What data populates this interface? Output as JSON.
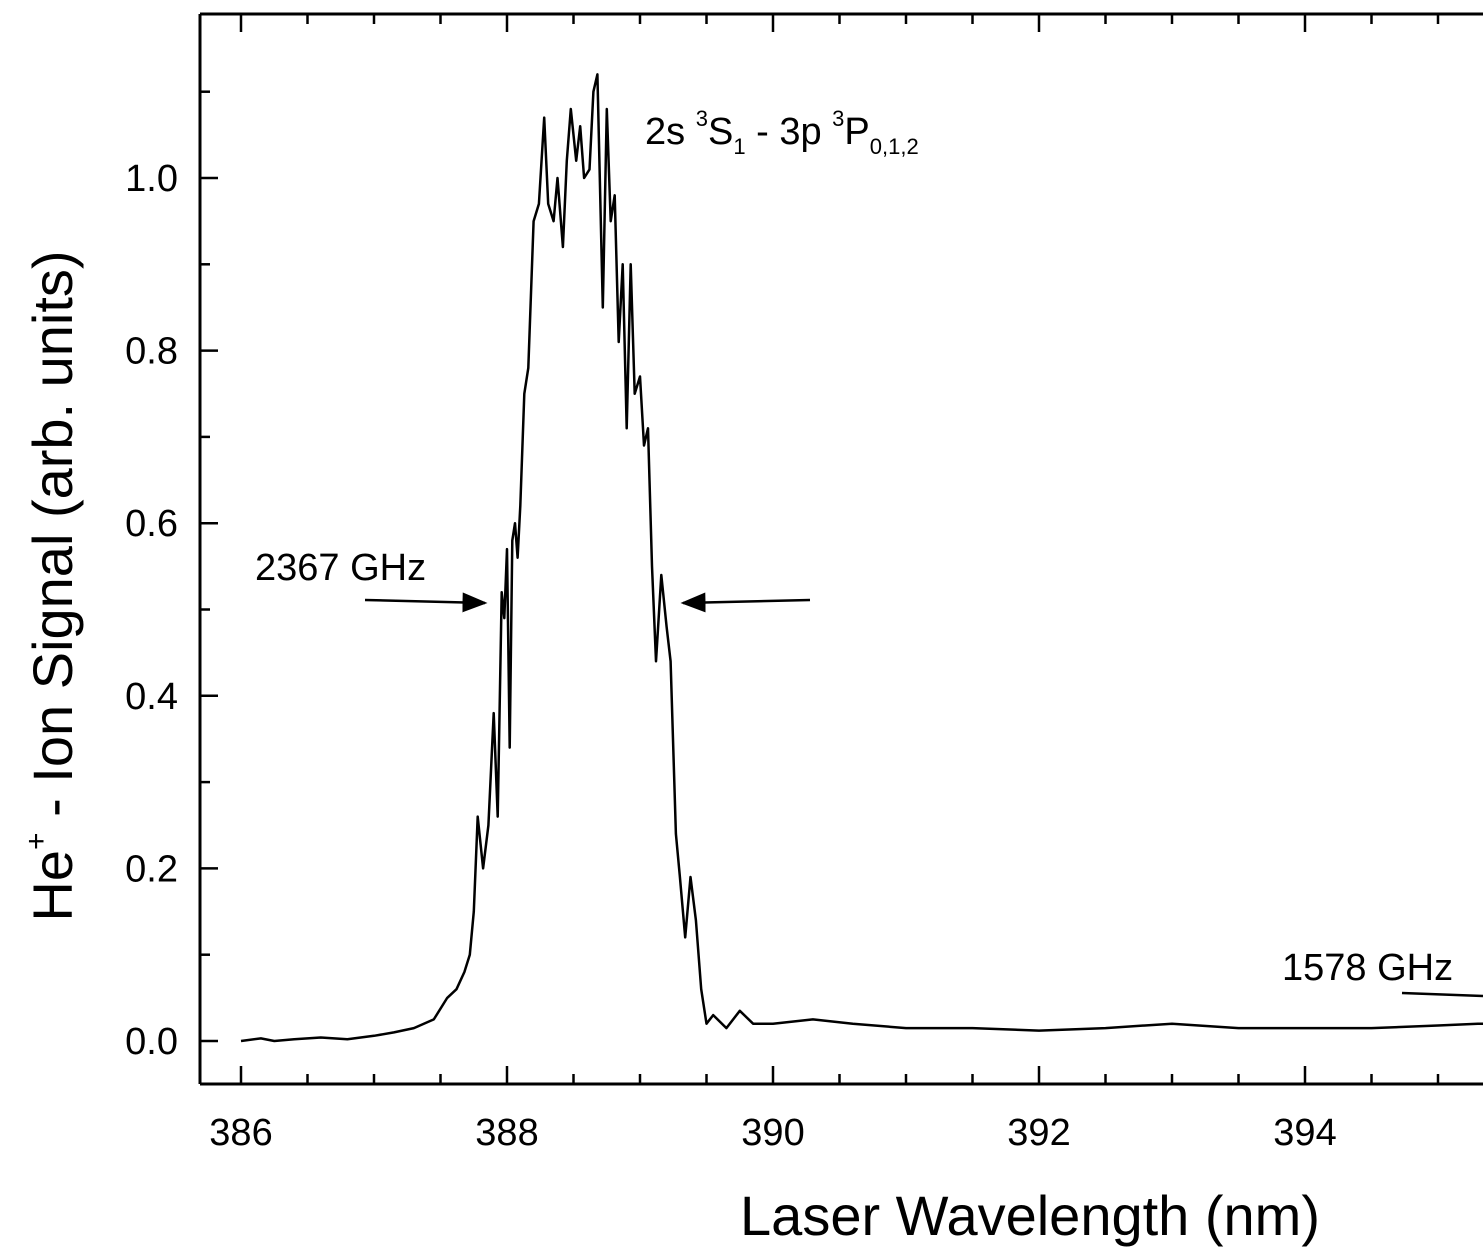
{
  "chart_data": {
    "type": "line",
    "xlabel": "Laser Wavelength (nm)",
    "ylabel": {
      "base": "He",
      "superscript": "+",
      "rest": " - Ion Signal (arb. units)"
    },
    "xlim": [
      385.55,
      395.6
    ],
    "ylim": [
      -0.05,
      1.18
    ],
    "x_ticks": [
      "386",
      "388",
      "390",
      "392",
      "394"
    ],
    "y_ticks": [
      "0.0",
      "0.2",
      "0.4",
      "0.6",
      "0.8",
      "1.0"
    ],
    "annotations": {
      "transition": {
        "parts": [
          "2s ",
          "3",
          "S",
          "1",
          " - 3p ",
          "3",
          "P",
          "0,1,2"
        ]
      },
      "width_left": "2367 GHz",
      "width_right": "1578 GHz"
    },
    "series": [
      {
        "color": "#000000",
        "x": [
          386.0,
          386.15,
          386.25,
          386.4,
          386.6,
          386.8,
          387.0,
          387.15,
          387.3,
          387.45,
          387.55,
          387.62,
          387.68,
          387.72,
          387.75,
          387.78,
          387.82,
          387.86,
          387.9,
          387.93,
          387.96,
          387.98,
          388.0,
          388.02,
          388.04,
          388.06,
          388.08,
          388.1,
          388.13,
          388.16,
          388.2,
          388.24,
          388.28,
          388.31,
          388.35,
          388.38,
          388.42,
          388.45,
          388.48,
          388.52,
          388.55,
          388.58,
          388.62,
          388.65,
          388.68,
          388.72,
          388.75,
          388.78,
          388.81,
          388.84,
          388.87,
          388.9,
          388.93,
          388.96,
          389.0,
          389.03,
          389.06,
          389.09,
          389.12,
          389.16,
          389.2,
          389.23,
          389.27,
          389.3,
          389.34,
          389.38,
          389.42,
          389.46,
          389.5,
          389.55,
          389.65,
          389.75,
          389.85,
          390.0,
          390.3,
          390.6,
          391.0,
          391.5,
          392.0,
          392.5,
          393.0,
          393.5,
          394.0,
          394.5,
          395.0,
          395.3,
          395.6
        ],
        "y": [
          0.0,
          0.003,
          0.0,
          0.002,
          0.004,
          0.002,
          0.006,
          0.01,
          0.015,
          0.025,
          0.05,
          0.06,
          0.08,
          0.1,
          0.15,
          0.26,
          0.2,
          0.25,
          0.38,
          0.26,
          0.52,
          0.49,
          0.57,
          0.34,
          0.58,
          0.6,
          0.56,
          0.62,
          0.75,
          0.78,
          0.95,
          0.97,
          1.07,
          0.97,
          0.95,
          1.0,
          0.92,
          1.02,
          1.08,
          1.02,
          1.06,
          1.0,
          1.01,
          1.1,
          1.12,
          0.85,
          1.08,
          0.95,
          0.98,
          0.81,
          0.9,
          0.71,
          0.9,
          0.75,
          0.77,
          0.69,
          0.71,
          0.55,
          0.44,
          0.54,
          0.48,
          0.44,
          0.24,
          0.19,
          0.12,
          0.19,
          0.14,
          0.06,
          0.02,
          0.03,
          0.015,
          0.035,
          0.02,
          0.02,
          0.025,
          0.02,
          0.015,
          0.015,
          0.012,
          0.015,
          0.02,
          0.015,
          0.015,
          0.015,
          0.018,
          0.02,
          0.02
        ]
      }
    ]
  }
}
